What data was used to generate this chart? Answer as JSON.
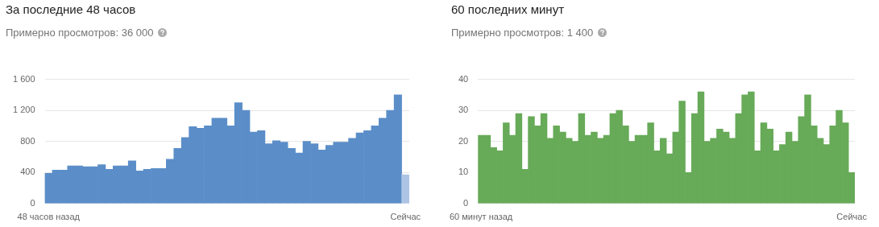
{
  "chart_data": [
    {
      "type": "bar",
      "title": "За последние 48 часов",
      "subtitle": "Примерно просмотров: 36 000",
      "categories": [
        "48 часов назад",
        null,
        null,
        null,
        null,
        null,
        null,
        null,
        null,
        null,
        null,
        null,
        null,
        null,
        null,
        null,
        null,
        null,
        null,
        null,
        null,
        null,
        null,
        null,
        null,
        null,
        null,
        null,
        null,
        null,
        null,
        null,
        null,
        null,
        null,
        null,
        null,
        null,
        null,
        null,
        null,
        null,
        null,
        null,
        null,
        null,
        null,
        "Сейчас"
      ],
      "values": [
        390,
        430,
        430,
        485,
        485,
        475,
        475,
        500,
        440,
        485,
        485,
        550,
        420,
        440,
        450,
        450,
        570,
        710,
        850,
        990,
        970,
        1000,
        1100,
        1100,
        1000,
        1300,
        1200,
        920,
        940,
        770,
        810,
        790,
        710,
        650,
        800,
        770,
        690,
        750,
        790,
        790,
        840,
        910,
        940,
        1000,
        1100,
        1200,
        1400,
        370
      ],
      "colors": [
        "#5b8ec8",
        "#5b8ec8",
        "#5b8ec8",
        "#5b8ec8",
        "#5b8ec8",
        "#5b8ec8",
        "#5b8ec8",
        "#5b8ec8",
        "#5b8ec8",
        "#5b8ec8",
        "#5b8ec8",
        "#5b8ec8",
        "#5b8ec8",
        "#5b8ec8",
        "#5b8ec8",
        "#5b8ec8",
        "#5b8ec8",
        "#5b8ec8",
        "#5b8ec8",
        "#5b8ec8",
        "#5b8ec8",
        "#5b8ec8",
        "#5b8ec8",
        "#5b8ec8",
        "#5b8ec8",
        "#5b8ec8",
        "#5b8ec8",
        "#5b8ec8",
        "#5b8ec8",
        "#5b8ec8",
        "#5b8ec8",
        "#5b8ec8",
        "#5b8ec8",
        "#5b8ec8",
        "#5b8ec8",
        "#5b8ec8",
        "#5b8ec8",
        "#5b8ec8",
        "#5b8ec8",
        "#5b8ec8",
        "#5b8ec8",
        "#5b8ec8",
        "#5b8ec8",
        "#5b8ec8",
        "#5b8ec8",
        "#5b8ec8",
        "#5b8ec8",
        "#aec4e4"
      ],
      "ylim": [
        0,
        1600
      ],
      "yticks": [
        0,
        {
          "value": 400,
          "label": "400"
        },
        {
          "value": 800,
          "label": "800"
        },
        {
          "value": 1200,
          "label": "1 200"
        },
        {
          "value": 1600,
          "label": "1 600"
        }
      ],
      "grid": "y"
    },
    {
      "type": "bar",
      "title": "60 последних минут",
      "subtitle": "Примерно просмотров: 1 400",
      "categories": [
        "60 минут назад",
        null,
        null,
        null,
        null,
        null,
        null,
        null,
        null,
        null,
        null,
        null,
        null,
        null,
        null,
        null,
        null,
        null,
        null,
        null,
        null,
        null,
        null,
        null,
        null,
        null,
        null,
        null,
        null,
        null,
        null,
        null,
        null,
        null,
        null,
        null,
        null,
        null,
        null,
        null,
        null,
        null,
        null,
        null,
        null,
        null,
        null,
        null,
        null,
        null,
        null,
        null,
        null,
        null,
        null,
        null,
        null,
        null,
        null,
        "Сейчас"
      ],
      "values": [
        22,
        22,
        18,
        17,
        26,
        22,
        29,
        11,
        28,
        25,
        29,
        21,
        25,
        23,
        21,
        20,
        29,
        22,
        23,
        21,
        22,
        29,
        30,
        25,
        20,
        22,
        22,
        26,
        17,
        21,
        16,
        23,
        33,
        10,
        29,
        36,
        20,
        21,
        24,
        23,
        21,
        29,
        35,
        36,
        17,
        26,
        24,
        17,
        19,
        23,
        20,
        28,
        35,
        25,
        21,
        19,
        25,
        30,
        26,
        10
      ],
      "color": "#67aa58",
      "ylim": [
        0,
        40
      ],
      "yticks": [
        0,
        10,
        20,
        30,
        40
      ],
      "grid": "y"
    }
  ]
}
